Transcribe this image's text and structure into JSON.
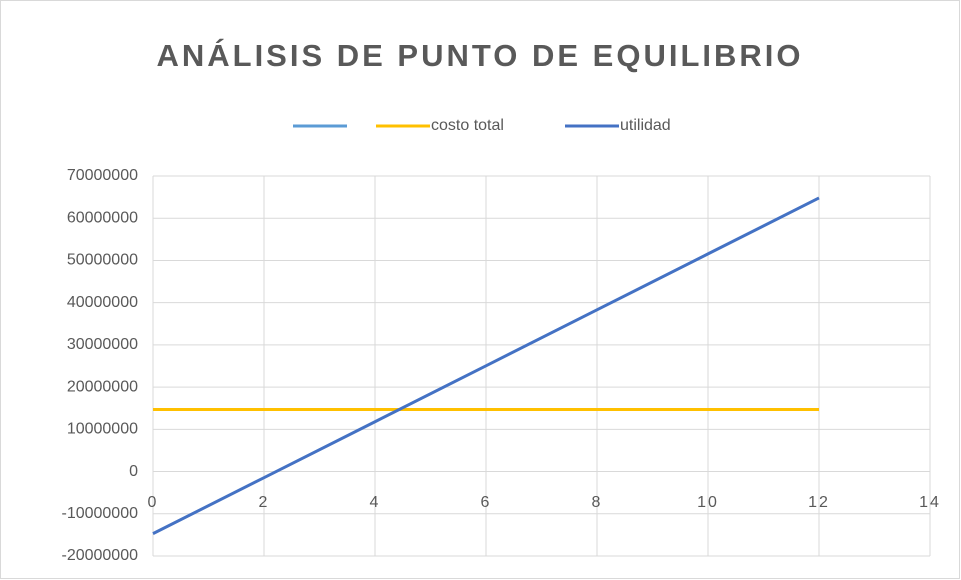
{
  "chart_data": {
    "type": "scatter",
    "title": "ANÁLISIS DE PUNTO DE EQUILIBRIO",
    "x": [
      0,
      2,
      4,
      6,
      8,
      10,
      12
    ],
    "series": [
      {
        "name": null,
        "color": "#5b9bd5",
        "values": [
          null,
          null,
          null,
          null,
          null,
          null,
          null
        ]
      },
      {
        "name": "costo total",
        "color": "#ffc000",
        "values": [
          14700000,
          14700000,
          14700000,
          14700000,
          14700000,
          14700000,
          14700000
        ]
      },
      {
        "name": "utilidad",
        "color": "#4472c4",
        "values": [
          -14700000,
          -1450000,
          11800000,
          25050000,
          38300000,
          51550000,
          64800000
        ]
      }
    ],
    "xlim": [
      0,
      14
    ],
    "xticks": [
      0,
      2,
      4,
      6,
      8,
      10,
      12,
      14
    ],
    "ylim": [
      -20000000,
      70000000
    ],
    "yticks": [
      -20000000,
      -10000000,
      0,
      10000000,
      20000000,
      30000000,
      40000000,
      50000000,
      60000000,
      70000000
    ],
    "grid": true,
    "legend": "top"
  }
}
